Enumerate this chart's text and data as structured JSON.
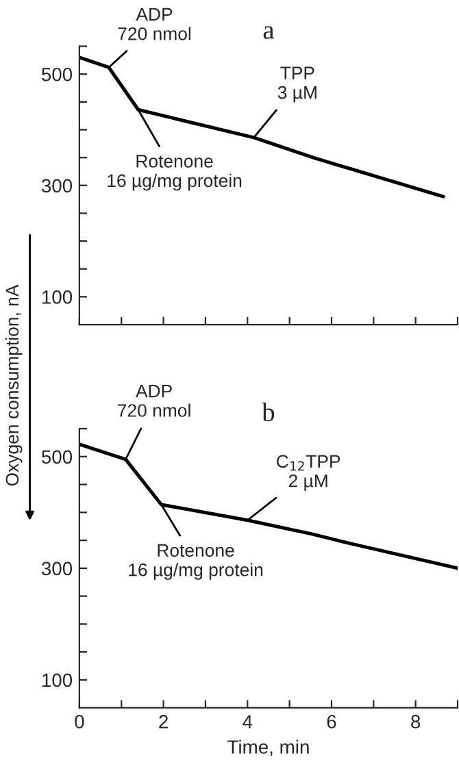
{
  "chart_data": [
    {
      "type": "line",
      "title": "a",
      "ylabel": "Oxygen consumption, nA",
      "x": [
        0,
        0.7,
        1.4,
        4.15,
        5.6,
        8.66
      ],
      "series": [
        {
          "color": "#000000",
          "values": [
            530,
            512,
            436,
            386,
            349,
            280
          ]
        }
      ],
      "xlim": [
        0,
        9
      ],
      "xticks": [
        {
          "value": 0,
          "label": null
        },
        {
          "value": 1,
          "label": null
        },
        {
          "value": 2,
          "label": null
        },
        {
          "value": 3,
          "label": null
        },
        {
          "value": 4,
          "label": null
        },
        {
          "value": 5,
          "label": null
        },
        {
          "value": 6,
          "label": null
        },
        {
          "value": 7,
          "label": null
        },
        {
          "value": 8,
          "label": null
        },
        {
          "value": 9,
          "label": null
        }
      ],
      "ylim": [
        50,
        550
      ],
      "yticks": [
        {
          "value": 100,
          "label": "100"
        },
        {
          "value": 150,
          "label": null
        },
        {
          "value": 200,
          "label": null
        },
        {
          "value": 250,
          "label": null
        },
        {
          "value": 300,
          "label": "300"
        },
        {
          "value": 350,
          "label": null
        },
        {
          "value": 400,
          "label": null
        },
        {
          "value": 450,
          "label": null
        },
        {
          "value": 500,
          "label": "500"
        },
        {
          "value": 550,
          "label": null
        }
      ],
      "tick_labels": "y",
      "grid": false,
      "legend": false,
      "marker": "none",
      "line_style": "solid",
      "annotations": [
        {
          "text": "ADP\n720 nmol",
          "x": 0.7,
          "y": 512
        },
        {
          "text": "Rotenone\n16 µg/mg protein",
          "x": 1.4,
          "y": 436
        },
        {
          "text": "TPP\n3 µM",
          "x": 4.15,
          "y": 386
        }
      ]
    },
    {
      "type": "line",
      "title": "b",
      "xlabel": "Time, min",
      "x": [
        0,
        1.1,
        1.95,
        4.0,
        5.55,
        6.35,
        9.0
      ],
      "series": [
        {
          "color": "#000000",
          "values": [
            522,
            495,
            414,
            386,
            361,
            346,
            300
          ]
        }
      ],
      "xlim": [
        0,
        9
      ],
      "xticks": [
        {
          "value": 0,
          "label": "0"
        },
        {
          "value": 1,
          "label": null
        },
        {
          "value": 2,
          "label": "2"
        },
        {
          "value": 3,
          "label": null
        },
        {
          "value": 4,
          "label": "4"
        },
        {
          "value": 5,
          "label": null
        },
        {
          "value": 6,
          "label": "6"
        },
        {
          "value": 7,
          "label": null
        },
        {
          "value": 8,
          "label": "8"
        },
        {
          "value": 9,
          "label": null
        }
      ],
      "ylim": [
        50,
        550
      ],
      "yticks": [
        {
          "value": 100,
          "label": "100"
        },
        {
          "value": 150,
          "label": null
        },
        {
          "value": 200,
          "label": null
        },
        {
          "value": 250,
          "label": null
        },
        {
          "value": 300,
          "label": "300"
        },
        {
          "value": 350,
          "label": null
        },
        {
          "value": 400,
          "label": null
        },
        {
          "value": 450,
          "label": null
        },
        {
          "value": 500,
          "label": "500"
        },
        {
          "value": 550,
          "label": null
        }
      ],
      "grid": false,
      "legend": false,
      "marker": "none",
      "line_style": "solid",
      "annotations": [
        {
          "text": "ADP\n720 nmol",
          "x": 1.1,
          "y": 495
        },
        {
          "text": "Rotenone\n16 µg/mg protein",
          "x": 1.95,
          "y": 414
        },
        {
          "text": "C$_{12}$TPP\n2 µM",
          "x": 4.0,
          "y": 386
        }
      ]
    }
  ]
}
